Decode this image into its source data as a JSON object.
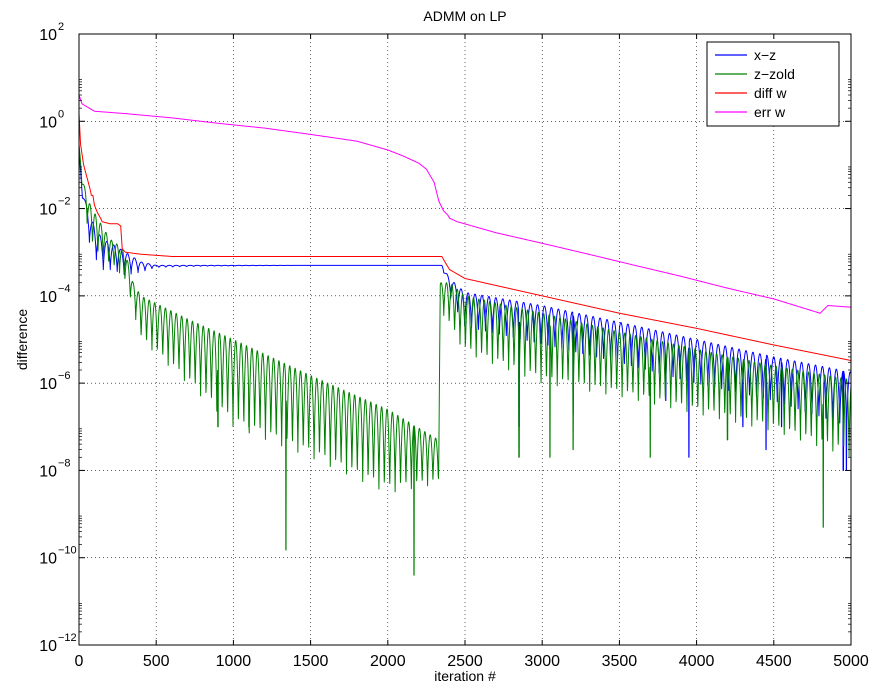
{
  "chart_data": {
    "type": "line",
    "title": "ADMM on LP",
    "xlabel": "iteration #",
    "ylabel": "difference",
    "xlim": [
      0,
      5000
    ],
    "ylim": [
      1e-12,
      100
    ],
    "yscale": "log",
    "grid": true,
    "legend_position": "top-right",
    "x_ticks": [
      "0",
      "500",
      "1000",
      "1500",
      "2000",
      "2500",
      "3000",
      "3500",
      "4000",
      "4500",
      "5000"
    ],
    "y_ticks": [
      {
        "base": "10",
        "exp": "-12"
      },
      {
        "base": "10",
        "exp": "-10"
      },
      {
        "base": "10",
        "exp": "-8"
      },
      {
        "base": "10",
        "exp": "-6"
      },
      {
        "base": "10",
        "exp": "-4"
      },
      {
        "base": "10",
        "exp": "-2"
      },
      {
        "base": "10",
        "exp": "0"
      },
      {
        "base": "10",
        "exp": "2"
      }
    ],
    "series": [
      {
        "name": "x−z",
        "color": "#0000ff",
        "envelope_upper": [
          [
            0,
            0.2
          ],
          [
            20,
            0.03
          ],
          [
            60,
            0.008
          ],
          [
            100,
            0.004
          ],
          [
            150,
            0.002
          ],
          [
            220,
            0.0015
          ],
          [
            300,
            0.001
          ],
          [
            400,
            0.0006
          ],
          [
            500,
            0.0005
          ],
          [
            800,
            0.0005
          ],
          [
            1500,
            0.0005
          ],
          [
            2000,
            0.0005
          ],
          [
            2350,
            0.0005
          ],
          [
            2400,
            0.00025
          ],
          [
            2500,
            0.00012
          ],
          [
            3000,
            6e-05
          ],
          [
            3500,
            2.5e-05
          ],
          [
            4000,
            1e-05
          ],
          [
            4500,
            4e-06
          ],
          [
            5000,
            1.8e-06
          ]
        ],
        "envelope_lower": [
          [
            0,
            0.2
          ],
          [
            20,
            0.02
          ],
          [
            60,
            0.002
          ],
          [
            100,
            0.0008
          ],
          [
            150,
            0.0004
          ],
          [
            220,
            0.0004
          ],
          [
            300,
            0.0003
          ],
          [
            400,
            0.00035
          ],
          [
            500,
            0.00045
          ],
          [
            800,
            0.00048
          ],
          [
            1500,
            0.0005
          ],
          [
            2000,
            0.0005
          ],
          [
            2350,
            0.0005
          ],
          [
            2400,
            0.0001
          ],
          [
            2500,
            2e-05
          ],
          [
            3000,
            8e-06
          ],
          [
            3500,
            3e-06
          ],
          [
            4000,
            1e-06
          ],
          [
            4500,
            4e-07
          ],
          [
            5000,
            1e-07
          ]
        ],
        "oscillation_period": 45,
        "spikes": [
          [
            2850,
            1e-07
          ],
          [
            3200,
            2e-07
          ],
          [
            3800,
            4e-07
          ],
          [
            3950,
            2e-08
          ],
          [
            4300,
            1e-07
          ],
          [
            4450,
            3e-08
          ],
          [
            4550,
            1e-07
          ],
          [
            4950,
            1e-08
          ],
          [
            4970,
            1e-08
          ]
        ]
      },
      {
        "name": "z−zold",
        "color": "#008000",
        "envelope_upper": [
          [
            0,
            0.3
          ],
          [
            20,
            0.05
          ],
          [
            60,
            0.015
          ],
          [
            100,
            0.008
          ],
          [
            200,
            0.002
          ],
          [
            250,
            0.0015
          ],
          [
            300,
            0.001
          ],
          [
            350,
            0.0002
          ],
          [
            400,
            0.0001
          ],
          [
            700,
            3e-05
          ],
          [
            1000,
            1e-05
          ],
          [
            1500,
            1.5e-06
          ],
          [
            2000,
            2.5e-07
          ],
          [
            2330,
            5e-08
          ],
          [
            2340,
            0.0002
          ],
          [
            2400,
            0.0002
          ],
          [
            2500,
            0.0001
          ],
          [
            3000,
            4e-05
          ],
          [
            3500,
            1.5e-05
          ],
          [
            4000,
            6e-06
          ],
          [
            4500,
            2.5e-06
          ],
          [
            5000,
            1.2e-06
          ]
        ],
        "envelope_lower": [
          [
            0,
            0.3
          ],
          [
            20,
            0.03
          ],
          [
            60,
            0.003
          ],
          [
            100,
            0.001
          ],
          [
            200,
            0.0005
          ],
          [
            250,
            0.0004
          ],
          [
            300,
            0.0002
          ],
          [
            350,
            5e-05
          ],
          [
            400,
            1e-05
          ],
          [
            700,
            1e-06
          ],
          [
            1000,
            1e-07
          ],
          [
            1500,
            2e-08
          ],
          [
            2000,
            3e-09
          ],
          [
            2330,
            5e-09
          ],
          [
            2340,
            5e-05
          ],
          [
            2400,
            2e-05
          ],
          [
            2500,
            5e-06
          ],
          [
            3000,
            1e-06
          ],
          [
            3500,
            5e-07
          ],
          [
            4000,
            2e-07
          ],
          [
            4500,
            8e-08
          ],
          [
            5000,
            2e-08
          ]
        ],
        "oscillation_period": 35,
        "spikes": [
          [
            900,
            1e-07
          ],
          [
            1100,
            1e-07
          ],
          [
            1340,
            1.5e-10
          ],
          [
            1700,
            5e-08
          ],
          [
            2170,
            4e-11
          ],
          [
            2850,
            2e-08
          ],
          [
            3050,
            2e-08
          ],
          [
            3200,
            3e-08
          ],
          [
            3700,
            2e-08
          ],
          [
            4200,
            5e-08
          ],
          [
            4820,
            5e-10
          ]
        ]
      },
      {
        "name": "diff w",
        "color": "#ff0000",
        "points": [
          [
            0,
            1.5
          ],
          [
            10,
            0.3
          ],
          [
            30,
            0.1
          ],
          [
            60,
            0.04
          ],
          [
            75,
            0.025
          ],
          [
            80,
            0.02
          ],
          [
            90,
            0.02
          ],
          [
            100,
            0.012
          ],
          [
            120,
            0.008
          ],
          [
            140,
            0.006
          ],
          [
            150,
            0.005
          ],
          [
            200,
            0.0045
          ],
          [
            250,
            0.0045
          ],
          [
            270,
            0.004
          ],
          [
            280,
            0.0012
          ],
          [
            300,
            0.001
          ],
          [
            400,
            0.0009
          ],
          [
            600,
            0.0008
          ],
          [
            1000,
            0.0008
          ],
          [
            1500,
            0.0008
          ],
          [
            2000,
            0.0008
          ],
          [
            2300,
            0.0008
          ],
          [
            2350,
            0.0008
          ],
          [
            2370,
            0.0006
          ],
          [
            2400,
            0.0004
          ],
          [
            2500,
            0.00025
          ],
          [
            3000,
            0.0001
          ],
          [
            3500,
            4e-05
          ],
          [
            4000,
            1.8e-05
          ],
          [
            4500,
            7.5e-06
          ],
          [
            5000,
            3.3e-06
          ]
        ]
      },
      {
        "name": "err w",
        "color": "#ff00ff",
        "points": [
          [
            0,
            4
          ],
          [
            20,
            2.5
          ],
          [
            100,
            1.7
          ],
          [
            300,
            1.5
          ],
          [
            600,
            1.2
          ],
          [
            900,
            0.9
          ],
          [
            1200,
            0.7
          ],
          [
            1500,
            0.5
          ],
          [
            1800,
            0.35
          ],
          [
            2000,
            0.22
          ],
          [
            2100,
            0.16
          ],
          [
            2200,
            0.11
          ],
          [
            2250,
            0.08
          ],
          [
            2300,
            0.04
          ],
          [
            2330,
            0.015
          ],
          [
            2360,
            0.009
          ],
          [
            2390,
            0.007
          ],
          [
            2400,
            0.006
          ],
          [
            2450,
            0.005
          ],
          [
            2700,
            0.0028
          ],
          [
            3000,
            0.0016
          ],
          [
            3300,
            0.0009
          ],
          [
            3600,
            0.0005
          ],
          [
            3900,
            0.00028
          ],
          [
            4200,
            0.00015
          ],
          [
            4500,
            8.5e-05
          ],
          [
            4800,
            4e-05
          ],
          [
            4850,
            6e-05
          ],
          [
            5000,
            5.5e-05
          ]
        ]
      }
    ]
  }
}
